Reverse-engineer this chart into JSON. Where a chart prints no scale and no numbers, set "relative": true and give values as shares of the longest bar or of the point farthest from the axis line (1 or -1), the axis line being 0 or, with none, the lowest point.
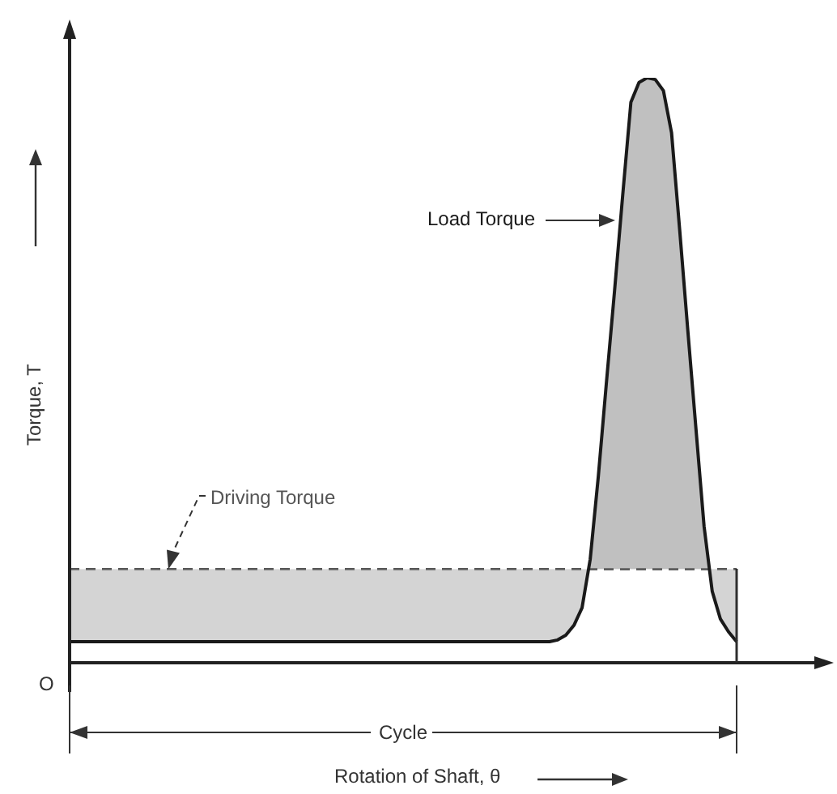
{
  "chart_data": {
    "type": "line",
    "relative": true,
    "legend": false,
    "marker": "none",
    "ylabel": "Torque, T",
    "categories": [
      null,
      null,
      null,
      null,
      null,
      null,
      null,
      null,
      null,
      null,
      null,
      null,
      null,
      null,
      null,
      null,
      null,
      null,
      null,
      null,
      null,
      null,
      null,
      null,
      null,
      null,
      null,
      null,
      null,
      null,
      null,
      null,
      null,
      null,
      null,
      null,
      null,
      null,
      null,
      null,
      null,
      null,
      null,
      null,
      null,
      null,
      null,
      null,
      null,
      null,
      null,
      null,
      null,
      null,
      null,
      null,
      null,
      null,
      null,
      null,
      null,
      null,
      null,
      null,
      null,
      null,
      null,
      null,
      null,
      null,
      null,
      null,
      null,
      null,
      null,
      null,
      null,
      null,
      null,
      null,
      null,
      null,
      null
    ],
    "series": [
      {
        "name": "Load Torque",
        "color": "#1a1a1a",
        "values": [
          0.036,
          0.036,
          0.036,
          0.036,
          0.036,
          0.036,
          0.036,
          0.036,
          0.036,
          0.036,
          0.036,
          0.036,
          0.036,
          0.036,
          0.036,
          0.036,
          0.036,
          0.036,
          0.036,
          0.036,
          0.036,
          0.036,
          0.036,
          0.036,
          0.036,
          0.036,
          0.036,
          0.036,
          0.036,
          0.036,
          0.036,
          0.036,
          0.036,
          0.036,
          0.036,
          0.036,
          0.036,
          0.036,
          0.036,
          0.036,
          0.036,
          0.036,
          0.036,
          0.036,
          0.036,
          0.036,
          0.036,
          0.036,
          0.036,
          0.036,
          0.036,
          0.036,
          0.036,
          0.036,
          0.036,
          0.036,
          0.036,
          0.036,
          0.036,
          0.036,
          0.039,
          0.047,
          0.064,
          0.094,
          0.177,
          0.319,
          0.48,
          0.637,
          0.8,
          0.958,
          0.992,
          1,
          0.997,
          0.978,
          0.906,
          0.74,
          0.568,
          0.4,
          0.233,
          0.122,
          0.075,
          0.053,
          0.036
        ]
      },
      {
        "name": "Driving Torque",
        "color": "#555555",
        "line_style": "dashed",
        "values": [
          0.16,
          0.16,
          0.16,
          0.16,
          0.16,
          0.16,
          0.16,
          0.16,
          0.16,
          0.16,
          0.16,
          0.16,
          0.16,
          0.16,
          0.16,
          0.16,
          0.16,
          0.16,
          0.16,
          0.16,
          0.16,
          0.16,
          0.16,
          0.16,
          0.16,
          0.16,
          0.16,
          0.16,
          0.16,
          0.16,
          0.16,
          0.16,
          0.16,
          0.16,
          0.16,
          0.16,
          0.16,
          0.16,
          0.16,
          0.16,
          0.16,
          0.16,
          0.16,
          0.16,
          0.16,
          0.16,
          0.16,
          0.16,
          0.16,
          0.16,
          0.16,
          0.16,
          0.16,
          0.16,
          0.16,
          0.16,
          0.16,
          0.16,
          0.16,
          0.16,
          0.16,
          0.16,
          0.16,
          0.16,
          0.16,
          0.16,
          0.16,
          0.16,
          0.16,
          0.16,
          0.16,
          0.16,
          0.16,
          0.16,
          0.16,
          0.16,
          0.16,
          0.16,
          0.16,
          0.16,
          0.16,
          0.16,
          0.16
        ]
      }
    ],
    "annotations": [
      "O",
      "Cycle",
      "Rotation of Shaft, θ"
    ]
  }
}
